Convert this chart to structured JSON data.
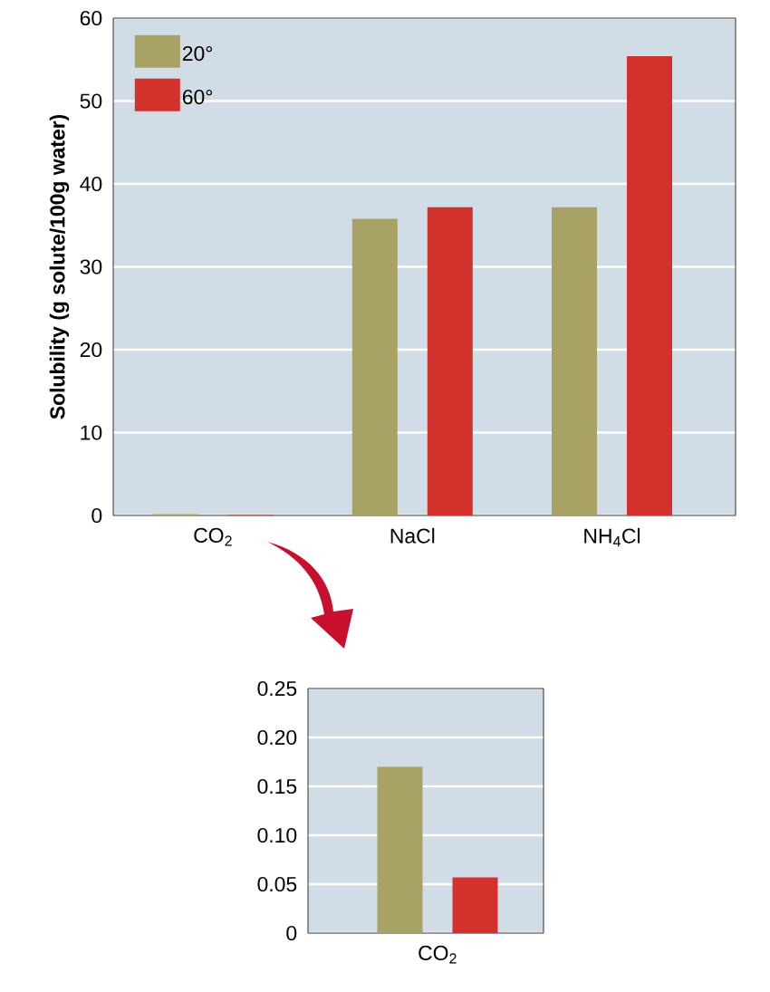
{
  "chart_data": [
    {
      "type": "bar",
      "ylabel": "Solubility (g solute/100g water)",
      "categories": [
        "CO$_{2}$",
        "NaCl",
        "NH$_{4}$Cl"
      ],
      "series": [
        {
          "name": "20°",
          "color": "#a9a265",
          "values": [
            0.17,
            35.8,
            37.2
          ]
        },
        {
          "name": "60°",
          "color": "#d3322c",
          "values": [
            0.057,
            37.2,
            55.4
          ]
        }
      ],
      "ylim": [
        0,
        60
      ],
      "yticks": [
        0,
        10,
        20,
        30,
        40,
        50,
        60
      ],
      "grid": "y",
      "legend": "top left"
    },
    {
      "type": "bar",
      "categories": [
        "CO$_{2}$"
      ],
      "series": [
        {
          "color": "#a9a265",
          "values": [
            0.17
          ]
        },
        {
          "color": "#d3322c",
          "values": [
            0.057
          ]
        }
      ],
      "ylim": [
        0,
        0.25
      ],
      "yticks": [
        0,
        0.05,
        {
          "value": 0.1,
          "label": "0.10"
        },
        0.15,
        {
          "value": 0.2,
          "label": "0.20"
        },
        0.25
      ],
      "grid": "y"
    }
  ]
}
